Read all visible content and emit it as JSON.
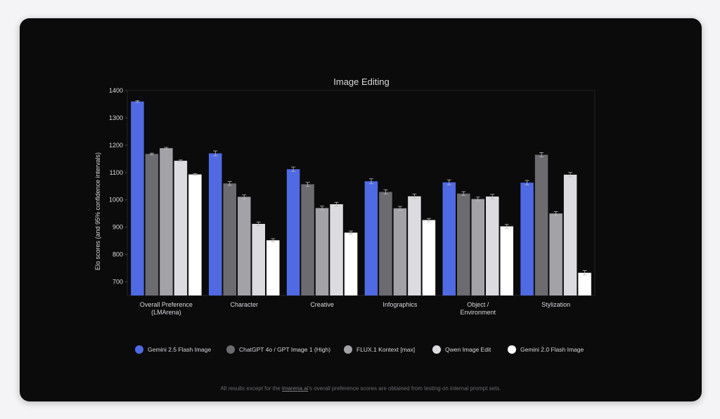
{
  "chart_data": {
    "type": "bar",
    "title": "Image Editing",
    "xlabel": "",
    "ylabel": "Elo scores (and 95% confidence intervals)",
    "ylim": [
      650,
      1400
    ],
    "yticks": [
      700,
      800,
      900,
      1000,
      1100,
      1200,
      1300,
      1400
    ],
    "categories": [
      [
        "Overall Preference",
        "(LMArena)"
      ],
      [
        "Character"
      ],
      [
        "Creative"
      ],
      [
        "Infographics"
      ],
      [
        "Object /",
        "Environment"
      ],
      [
        "Stylization"
      ]
    ],
    "series": [
      {
        "name": "Gemini 2.5 Flash Image",
        "color": "#4f6ae3",
        "values": [
          1360,
          1170,
          1112,
          1068,
          1064,
          1063
        ],
        "err": [
          3,
          9,
          8,
          9,
          9,
          8
        ]
      },
      {
        "name": "ChatGPT 4o / GPT Image 1 (High)",
        "color": "#6c6c70",
        "values": [
          1168,
          1060,
          1057,
          1029,
          1023,
          1165
        ],
        "err": [
          3,
          7,
          7,
          8,
          7,
          8
        ]
      },
      {
        "name": "FLUX.1 Kontext [max]",
        "color": "#a2a2a7",
        "values": [
          1189,
          1011,
          970,
          969,
          1003,
          950
        ],
        "err": [
          3,
          7,
          7,
          7,
          7,
          7
        ]
      },
      {
        "name": "Qwen Image Edit",
        "color": "#dcdce0",
        "values": [
          1143,
          912,
          984,
          1013,
          1012,
          1092
        ],
        "err": [
          3,
          7,
          7,
          8,
          8,
          8
        ]
      },
      {
        "name": "Gemini 2.0 Flash Image",
        "color": "#ffffff",
        "values": [
          1093,
          852,
          880,
          926,
          903,
          733
        ],
        "err": [
          3,
          6,
          6,
          6,
          7,
          8
        ]
      }
    ],
    "grid": false,
    "legend_placement": "bottom"
  },
  "footnote": {
    "prefix": "All results except for the ",
    "link": "lmarena.ai",
    "suffix": "'s overall preference scores are obtained from testing on internal prompt sets."
  }
}
